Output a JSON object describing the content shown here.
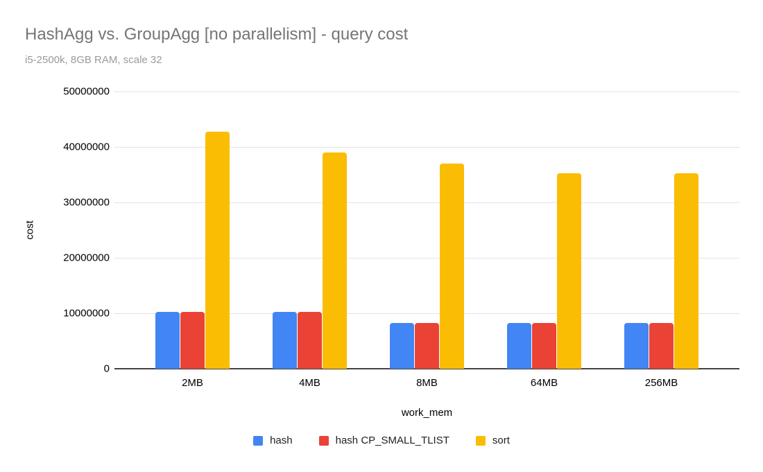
{
  "chart_data": {
    "type": "bar",
    "title": "HashAgg vs. GroupAgg [no parallelism] - query cost",
    "subtitle": "i5-2500k, 8GB RAM, scale 32",
    "xlabel": "work_mem",
    "ylabel": "cost",
    "ylim": [
      0,
      50000000
    ],
    "ytick_interval": 10000000,
    "ytick_labels": [
      "0",
      "10000000",
      "20000000",
      "30000000",
      "40000000",
      "50000000"
    ],
    "grid": true,
    "legend_position": "bottom",
    "categories": [
      "2MB",
      "4MB",
      "8MB",
      "64MB",
      "256MB"
    ],
    "series": [
      {
        "name": "hash",
        "color": "#4285F4",
        "values": [
          10200000,
          10200000,
          8300000,
          8300000,
          8300000
        ]
      },
      {
        "name": "hash CP_SMALL_TLIST",
        "color": "#EA4335",
        "values": [
          10200000,
          10200000,
          8300000,
          8300000,
          8300000
        ]
      },
      {
        "name": "sort",
        "color": "#FBBC04",
        "values": [
          42700000,
          39000000,
          37000000,
          35200000,
          35200000
        ]
      }
    ]
  },
  "colors": {
    "title_text": "#757575",
    "subtitle_text": "#9a9a9a",
    "axis_text": "#000000",
    "gridline": "#e3e3e3",
    "baseline": "#424242",
    "background": "#ffffff"
  }
}
